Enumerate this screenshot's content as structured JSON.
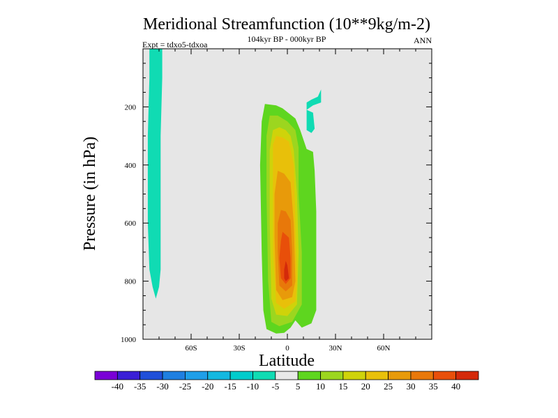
{
  "chart_data": {
    "type": "contour",
    "title": "Meridional Streamfunction (10**9kg/m-2)",
    "subtitle": "104kyr BP - 000kyr BP",
    "left_label": "Expt = tdxo5-tdxoa",
    "right_label": "ANN",
    "xlabel": "Latitude",
    "ylabel": "Pressure (in hPa)",
    "xlim": [
      -90,
      90
    ],
    "ylim": [
      1000,
      0
    ],
    "grid": false,
    "background_color": "#e6e6e6",
    "x_ticks": [
      {
        "value": -60,
        "label": "60S"
      },
      {
        "value": -30,
        "label": "30S"
      },
      {
        "value": 0,
        "label": "0"
      },
      {
        "value": 30,
        "label": "30N"
      },
      {
        "value": 60,
        "label": "60N"
      }
    ],
    "y_ticks": [
      {
        "value": 200,
        "label": "200"
      },
      {
        "value": 400,
        "label": "400"
      },
      {
        "value": 600,
        "label": "600"
      },
      {
        "value": 800,
        "label": "800"
      },
      {
        "value": 1000,
        "label": "1000"
      }
    ],
    "colorbar": {
      "labels": [
        "-40",
        "-35",
        "-30",
        "-25",
        "-20",
        "-15",
        "-10",
        "-5",
        "5",
        "10",
        "15",
        "20",
        "25",
        "30",
        "35",
        "40"
      ],
      "colors": [
        "#7a00d6",
        "#3a1fd6",
        "#1f4fd9",
        "#1f7fe0",
        "#1f9fe8",
        "#13b8e0",
        "#00cccc",
        "#10dbb3",
        "#e8e8e8",
        "#5ed61f",
        "#9cd61f",
        "#cfd30a",
        "#e8c00a",
        "#e89a0a",
        "#e8780a",
        "#e84f0a",
        "#d42a0a"
      ]
    },
    "regions": [
      {
        "name": "sh-polar-negative-cell",
        "level": "-10 to -5",
        "color": "#10dbb3",
        "outline": [
          [
            -86,
            0
          ],
          [
            -78,
            0
          ],
          [
            -78,
            100
          ],
          [
            -79,
            300
          ],
          [
            -79,
            600
          ],
          [
            -79,
            760
          ],
          [
            -80,
            820
          ],
          [
            -82,
            860
          ],
          [
            -84,
            820
          ],
          [
            -86,
            760
          ],
          [
            -87,
            600
          ],
          [
            -87,
            300
          ],
          [
            -86,
            100
          ]
        ]
      },
      {
        "name": "upper-nh-negative-cell",
        "level": "-10 to -5",
        "color": "#10dbb3",
        "outline": [
          [
            12,
            210
          ],
          [
            16,
            195
          ],
          [
            21,
            185
          ],
          [
            21,
            140
          ],
          [
            19,
            165
          ],
          [
            15,
            175
          ],
          [
            12,
            185
          ]
        ]
      },
      {
        "name": "upper-nh-negative-cell-2",
        "level": "-10 to -5",
        "color": "#10dbb3",
        "outline": [
          [
            12,
            185
          ],
          [
            12,
            280
          ],
          [
            15,
            290
          ],
          [
            17,
            275
          ],
          [
            16,
            220
          ],
          [
            12,
            210
          ]
        ]
      },
      {
        "name": "hadley-cell-5",
        "level": "5 to 10",
        "color": "#5ed61f",
        "outline": [
          [
            -14,
            190
          ],
          [
            -7,
            195
          ],
          [
            -3,
            205
          ],
          [
            5,
            240
          ],
          [
            8,
            280
          ],
          [
            12,
            345
          ],
          [
            16,
            355
          ],
          [
            17,
            420
          ],
          [
            18,
            560
          ],
          [
            18,
            800
          ],
          [
            18,
            900
          ],
          [
            15,
            945
          ],
          [
            9,
            960
          ],
          [
            5,
            935
          ],
          [
            2,
            960
          ],
          [
            -2,
            978
          ],
          [
            -7,
            980
          ],
          [
            -13,
            965
          ],
          [
            -15,
            900
          ],
          [
            -16,
            700
          ],
          [
            -17,
            400
          ],
          [
            -16,
            250
          ]
        ]
      },
      {
        "name": "hadley-cell-10",
        "level": "10 to 15",
        "color": "#9cd61f",
        "outline": [
          [
            -11,
            230
          ],
          [
            -6,
            230
          ],
          [
            0,
            250
          ],
          [
            5,
            280
          ],
          [
            7,
            340
          ],
          [
            7,
            500
          ],
          [
            9,
            700
          ],
          [
            9,
            880
          ],
          [
            3,
            940
          ],
          [
            -5,
            955
          ],
          [
            -10,
            940
          ],
          [
            -12,
            800
          ],
          [
            -13,
            500
          ],
          [
            -13,
            300
          ]
        ]
      },
      {
        "name": "hadley-cell-15",
        "level": "15 to 20",
        "color": "#cfd30a",
        "outline": [
          [
            -9,
            280
          ],
          [
            -5,
            270
          ],
          [
            -1,
            280
          ],
          [
            2,
            300
          ],
          [
            4,
            350
          ],
          [
            6,
            500
          ],
          [
            7,
            700
          ],
          [
            6,
            880
          ],
          [
            0,
            920
          ],
          [
            -7,
            915
          ],
          [
            -10,
            860
          ],
          [
            -11,
            600
          ],
          [
            -11,
            350
          ]
        ]
      },
      {
        "name": "hadley-cell-20",
        "level": "20 to 25",
        "color": "#e8c00a",
        "outline": [
          [
            -7,
            300
          ],
          [
            -3,
            305
          ],
          [
            1,
            320
          ],
          [
            4,
            400
          ],
          [
            5,
            600
          ],
          [
            6,
            800
          ],
          [
            5,
            870
          ],
          [
            -2,
            895
          ],
          [
            -7,
            875
          ],
          [
            -9,
            700
          ],
          [
            -9,
            450
          ],
          [
            -9,
            330
          ]
        ]
      },
      {
        "name": "hadley-cell-25",
        "level": "25 to 30",
        "color": "#e89a0a",
        "outline": [
          [
            -6,
            420
          ],
          [
            -2,
            430
          ],
          [
            2,
            460
          ],
          [
            4,
            600
          ],
          [
            5,
            800
          ],
          [
            3,
            855
          ],
          [
            -3,
            865
          ],
          [
            -7,
            830
          ],
          [
            -8,
            650
          ],
          [
            -8,
            500
          ]
        ]
      },
      {
        "name": "hadley-cell-30",
        "level": "30 to 35",
        "color": "#e8780a",
        "outline": [
          [
            -4,
            555
          ],
          [
            -1,
            560
          ],
          [
            2,
            590
          ],
          [
            3,
            700
          ],
          [
            3,
            815
          ],
          [
            -1,
            835
          ],
          [
            -5,
            815
          ],
          [
            -6,
            700
          ],
          [
            -6,
            600
          ]
        ]
      },
      {
        "name": "hadley-cell-35",
        "level": "35 to 40",
        "color": "#e84f0a",
        "outline": [
          [
            -3,
            630
          ],
          [
            1,
            650
          ],
          [
            2,
            720
          ],
          [
            2,
            790
          ],
          [
            -1,
            810
          ],
          [
            -4,
            790
          ],
          [
            -5,
            720
          ],
          [
            -4,
            660
          ]
        ]
      },
      {
        "name": "hadley-cell-40",
        "level": "> 40",
        "color": "#d42a0a",
        "outline": [
          [
            -1,
            730
          ],
          [
            0,
            745
          ],
          [
            1,
            790
          ],
          [
            -1,
            800
          ],
          [
            -2,
            790
          ],
          [
            -2,
            760
          ]
        ]
      }
    ]
  }
}
